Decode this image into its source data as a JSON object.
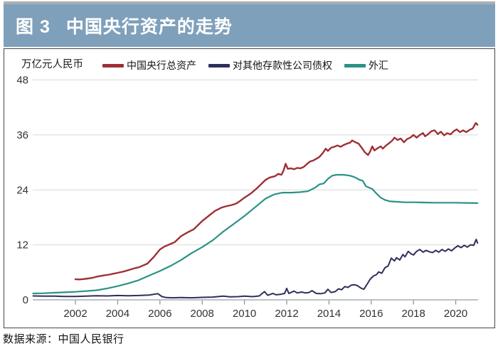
{
  "header": {
    "figure_label": "图 3",
    "title": "中国央行资产的走势"
  },
  "chart": {
    "unit_label": "万亿元人民币"
  },
  "footer": {
    "source": "数据来源：中国人民银行"
  },
  "colors": {
    "title_bar_bg": "#7fa0bb",
    "title_text": "#ffffff",
    "panel_border": "#454545",
    "gridline": "#d8d8d8",
    "axis_line": "#a3aeb6",
    "tick": "#8b8b8b",
    "axis_label": "#333333"
  },
  "chart_data": {
    "type": "line",
    "title": "中国央行资产的走势",
    "ylabel": "万亿元人民币",
    "xlabel": "",
    "xlim": [
      2000,
      2021.2
    ],
    "ylim": [
      0,
      48
    ],
    "y_ticks": [
      0,
      12,
      24,
      36,
      48
    ],
    "x_ticks": [
      2002,
      2004,
      2006,
      2008,
      2010,
      2012,
      2014,
      2016,
      2018,
      2020
    ],
    "grid": "horizontal",
    "legend_position": "top",
    "series": [
      {
        "id": "total-assets",
        "name": "中国央行总资产",
        "color": "#9e3036",
        "width": 2.4,
        "points": [
          [
            2002.0,
            4.5
          ],
          [
            2002.2,
            4.45
          ],
          [
            2002.4,
            4.55
          ],
          [
            2002.6,
            4.65
          ],
          [
            2002.8,
            4.8
          ],
          [
            2003.0,
            5.05
          ],
          [
            2003.3,
            5.3
          ],
          [
            2003.6,
            5.5
          ],
          [
            2003.8,
            5.7
          ],
          [
            2004.0,
            5.9
          ],
          [
            2004.3,
            6.2
          ],
          [
            2004.6,
            6.6
          ],
          [
            2004.8,
            6.9
          ],
          [
            2005.0,
            7.1
          ],
          [
            2005.4,
            7.9
          ],
          [
            2005.7,
            9.3
          ],
          [
            2006.0,
            11.0
          ],
          [
            2006.2,
            11.6
          ],
          [
            2006.4,
            12.0
          ],
          [
            2006.7,
            12.6
          ],
          [
            2007.0,
            13.9
          ],
          [
            2007.3,
            14.7
          ],
          [
            2007.6,
            15.4
          ],
          [
            2007.8,
            16.3
          ],
          [
            2008.0,
            17.2
          ],
          [
            2008.3,
            18.3
          ],
          [
            2008.6,
            19.4
          ],
          [
            2008.9,
            20.1
          ],
          [
            2009.1,
            20.4
          ],
          [
            2009.4,
            20.7
          ],
          [
            2009.6,
            21.0
          ],
          [
            2009.8,
            21.6
          ],
          [
            2010.0,
            22.3
          ],
          [
            2010.3,
            23.2
          ],
          [
            2010.6,
            24.4
          ],
          [
            2010.8,
            25.3
          ],
          [
            2011.0,
            26.2
          ],
          [
            2011.2,
            26.7
          ],
          [
            2011.45,
            27.0
          ],
          [
            2011.6,
            27.5
          ],
          [
            2011.75,
            27.3
          ],
          [
            2011.85,
            28.2
          ],
          [
            2011.95,
            29.7
          ],
          [
            2012.05,
            28.6
          ],
          [
            2012.2,
            28.7
          ],
          [
            2012.35,
            28.5
          ],
          [
            2012.5,
            28.8
          ],
          [
            2012.65,
            28.7
          ],
          [
            2012.8,
            29.0
          ],
          [
            2012.95,
            29.6
          ],
          [
            2013.1,
            30.2
          ],
          [
            2013.25,
            30.4
          ],
          [
            2013.4,
            30.8
          ],
          [
            2013.55,
            31.2
          ],
          [
            2013.7,
            32.0
          ],
          [
            2013.85,
            33.0
          ],
          [
            2013.95,
            32.5
          ],
          [
            2014.1,
            33.2
          ],
          [
            2014.25,
            33.4
          ],
          [
            2014.4,
            33.7
          ],
          [
            2014.55,
            33.4
          ],
          [
            2014.7,
            33.8
          ],
          [
            2014.85,
            34.1
          ],
          [
            2015.0,
            34.3
          ],
          [
            2015.1,
            34.8
          ],
          [
            2015.25,
            34.4
          ],
          [
            2015.4,
            34.1
          ],
          [
            2015.55,
            33.2
          ],
          [
            2015.7,
            32.2
          ],
          [
            2015.85,
            31.6
          ],
          [
            2015.95,
            32.4
          ],
          [
            2016.05,
            33.5
          ],
          [
            2016.15,
            32.6
          ],
          [
            2016.3,
            33.1
          ],
          [
            2016.45,
            33.5
          ],
          [
            2016.55,
            33.0
          ],
          [
            2016.7,
            33.7
          ],
          [
            2016.85,
            34.2
          ],
          [
            2017.0,
            34.8
          ],
          [
            2017.1,
            35.4
          ],
          [
            2017.25,
            34.9
          ],
          [
            2017.4,
            35.2
          ],
          [
            2017.55,
            34.4
          ],
          [
            2017.7,
            35.1
          ],
          [
            2017.85,
            35.4
          ],
          [
            2018.0,
            36.0
          ],
          [
            2018.15,
            35.4
          ],
          [
            2018.3,
            36.0
          ],
          [
            2018.45,
            36.4
          ],
          [
            2018.55,
            35.7
          ],
          [
            2018.7,
            36.2
          ],
          [
            2018.85,
            36.8
          ],
          [
            2019.0,
            37.0
          ],
          [
            2019.15,
            36.2
          ],
          [
            2019.3,
            36.7
          ],
          [
            2019.45,
            35.9
          ],
          [
            2019.6,
            36.4
          ],
          [
            2019.75,
            36.1
          ],
          [
            2019.9,
            36.8
          ],
          [
            2020.05,
            37.2
          ],
          [
            2020.2,
            36.6
          ],
          [
            2020.35,
            37.0
          ],
          [
            2020.5,
            36.6
          ],
          [
            2020.65,
            37.1
          ],
          [
            2020.8,
            37.4
          ],
          [
            2020.95,
            38.6
          ],
          [
            2021.03,
            38.2
          ]
        ]
      },
      {
        "id": "claims-on-odc",
        "name": "对其他存款性公司债权",
        "color": "#2e2f5b",
        "width": 2.0,
        "points": [
          [
            2000.0,
            0.85
          ],
          [
            2000.5,
            0.8
          ],
          [
            2001.0,
            0.8
          ],
          [
            2001.5,
            0.75
          ],
          [
            2002.0,
            0.75
          ],
          [
            2002.5,
            0.8
          ],
          [
            2003.0,
            0.9
          ],
          [
            2003.5,
            0.85
          ],
          [
            2004.0,
            0.95
          ],
          [
            2004.5,
            0.9
          ],
          [
            2005.0,
            0.95
          ],
          [
            2005.5,
            1.05
          ],
          [
            2005.9,
            1.35
          ],
          [
            2006.1,
            0.7
          ],
          [
            2006.3,
            0.5
          ],
          [
            2006.6,
            0.45
          ],
          [
            2007.0,
            0.5
          ],
          [
            2007.5,
            0.45
          ],
          [
            2008.0,
            0.55
          ],
          [
            2008.5,
            0.6
          ],
          [
            2009.0,
            0.8
          ],
          [
            2009.3,
            0.65
          ],
          [
            2009.7,
            0.7
          ],
          [
            2010.0,
            0.8
          ],
          [
            2010.4,
            0.7
          ],
          [
            2010.7,
            0.85
          ],
          [
            2010.95,
            1.8
          ],
          [
            2011.1,
            1.0
          ],
          [
            2011.35,
            1.4
          ],
          [
            2011.5,
            1.1
          ],
          [
            2011.7,
            1.2
          ],
          [
            2011.9,
            1.4
          ],
          [
            2012.0,
            2.5
          ],
          [
            2012.1,
            1.4
          ],
          [
            2012.35,
            1.9
          ],
          [
            2012.5,
            1.5
          ],
          [
            2012.7,
            1.7
          ],
          [
            2012.9,
            1.5
          ],
          [
            2013.05,
            1.6
          ],
          [
            2013.2,
            2.0
          ],
          [
            2013.4,
            1.4
          ],
          [
            2013.6,
            1.35
          ],
          [
            2013.8,
            1.5
          ],
          [
            2013.95,
            2.3
          ],
          [
            2014.1,
            1.6
          ],
          [
            2014.3,
            1.8
          ],
          [
            2014.45,
            2.4
          ],
          [
            2014.6,
            2.2
          ],
          [
            2014.75,
            2.9
          ],
          [
            2014.9,
            2.7
          ],
          [
            2015.05,
            3.2
          ],
          [
            2015.2,
            3.3
          ],
          [
            2015.35,
            3.1
          ],
          [
            2015.5,
            2.6
          ],
          [
            2015.65,
            2.3
          ],
          [
            2015.8,
            3.4
          ],
          [
            2015.95,
            4.5
          ],
          [
            2016.1,
            5.2
          ],
          [
            2016.25,
            5.5
          ],
          [
            2016.35,
            6.1
          ],
          [
            2016.5,
            5.8
          ],
          [
            2016.65,
            7.0
          ],
          [
            2016.8,
            7.4
          ],
          [
            2016.95,
            9.1
          ],
          [
            2017.1,
            8.5
          ],
          [
            2017.2,
            9.2
          ],
          [
            2017.35,
            8.7
          ],
          [
            2017.5,
            9.9
          ],
          [
            2017.6,
            9.4
          ],
          [
            2017.75,
            10.6
          ],
          [
            2017.9,
            10.0
          ],
          [
            2018.0,
            9.8
          ],
          [
            2018.15,
            10.6
          ],
          [
            2018.3,
            11.0
          ],
          [
            2018.45,
            10.4
          ],
          [
            2018.6,
            10.8
          ],
          [
            2018.75,
            10.5
          ],
          [
            2018.9,
            10.3
          ],
          [
            2019.05,
            10.8
          ],
          [
            2019.2,
            10.4
          ],
          [
            2019.35,
            11.0
          ],
          [
            2019.5,
            10.6
          ],
          [
            2019.65,
            11.1
          ],
          [
            2019.8,
            10.7
          ],
          [
            2019.95,
            11.3
          ],
          [
            2020.1,
            11.8
          ],
          [
            2020.25,
            11.4
          ],
          [
            2020.4,
            11.9
          ],
          [
            2020.55,
            11.5
          ],
          [
            2020.7,
            12.0
          ],
          [
            2020.85,
            11.9
          ],
          [
            2020.97,
            13.2
          ],
          [
            2021.03,
            12.4
          ]
        ]
      },
      {
        "id": "foreign-exchange",
        "name": "外汇",
        "color": "#2b9286",
        "width": 2.2,
        "points": [
          [
            2000.0,
            1.4
          ],
          [
            2000.5,
            1.45
          ],
          [
            2001.0,
            1.55
          ],
          [
            2001.5,
            1.65
          ],
          [
            2002.0,
            1.75
          ],
          [
            2002.5,
            1.9
          ],
          [
            2003.0,
            2.1
          ],
          [
            2003.5,
            2.5
          ],
          [
            2004.0,
            3.0
          ],
          [
            2004.5,
            3.6
          ],
          [
            2005.0,
            4.3
          ],
          [
            2005.5,
            5.3
          ],
          [
            2006.0,
            6.3
          ],
          [
            2006.5,
            7.4
          ],
          [
            2007.0,
            8.7
          ],
          [
            2007.5,
            10.2
          ],
          [
            2008.0,
            11.5
          ],
          [
            2008.5,
            13.0
          ],
          [
            2009.0,
            14.9
          ],
          [
            2009.5,
            16.6
          ],
          [
            2010.0,
            18.3
          ],
          [
            2010.5,
            20.2
          ],
          [
            2011.0,
            22.1
          ],
          [
            2011.4,
            23.0
          ],
          [
            2011.8,
            23.4
          ],
          [
            2012.2,
            23.4
          ],
          [
            2012.6,
            23.5
          ],
          [
            2013.0,
            23.7
          ],
          [
            2013.35,
            24.5
          ],
          [
            2013.55,
            25.2
          ],
          [
            2013.75,
            25.4
          ],
          [
            2013.95,
            26.4
          ],
          [
            2014.15,
            27.1
          ],
          [
            2014.35,
            27.3
          ],
          [
            2014.7,
            27.3
          ],
          [
            2015.0,
            27.1
          ],
          [
            2015.2,
            26.8
          ],
          [
            2015.45,
            26.2
          ],
          [
            2015.6,
            26.0
          ],
          [
            2015.75,
            24.8
          ],
          [
            2015.9,
            24.5
          ],
          [
            2016.05,
            24.2
          ],
          [
            2016.25,
            23.2
          ],
          [
            2016.45,
            22.3
          ],
          [
            2016.65,
            21.8
          ],
          [
            2016.9,
            21.5
          ],
          [
            2017.2,
            21.4
          ],
          [
            2017.6,
            21.3
          ],
          [
            2018.0,
            21.3
          ],
          [
            2018.5,
            21.25
          ],
          [
            2019.0,
            21.2
          ],
          [
            2019.5,
            21.2
          ],
          [
            2020.0,
            21.2
          ],
          [
            2020.5,
            21.15
          ],
          [
            2021.03,
            21.1
          ]
        ]
      }
    ]
  }
}
